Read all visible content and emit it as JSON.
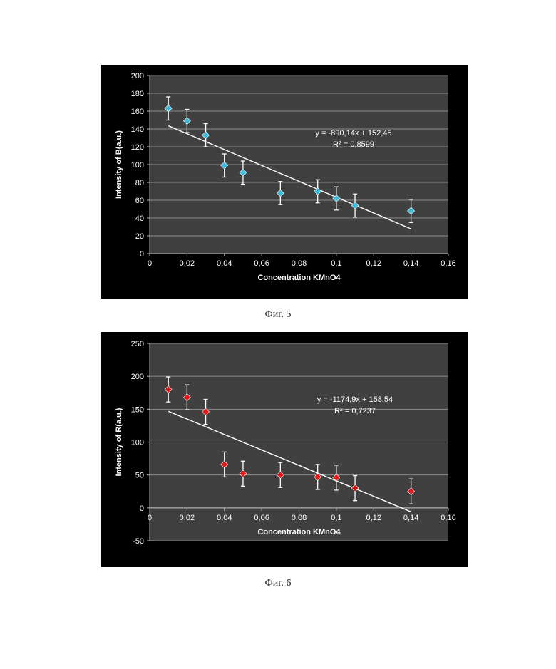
{
  "chart_data": [
    {
      "type": "scatter",
      "ylabel": "Intensity of B(a.u.)",
      "xlabel": "Concentration KMnO4",
      "x_ticks": [
        "0",
        "0,02",
        "0,04",
        "0,06",
        "0,08",
        "0,1",
        "0,12",
        "0,14",
        "0,16"
      ],
      "y_ticks": [
        "0",
        "20",
        "40",
        "60",
        "80",
        "100",
        "120",
        "140",
        "160",
        "180",
        "200"
      ],
      "xlim": [
        0,
        0.16
      ],
      "ylim": [
        0,
        200
      ],
      "grid": true,
      "marker_color": "#3cb9d8",
      "series": [
        {
          "x": [
            0.01,
            0.02,
            0.03,
            0.04,
            0.05,
            0.07,
            0.09,
            0.1,
            0.11,
            0.14
          ],
          "y": [
            163,
            149,
            133,
            99,
            91,
            68,
            70,
            62,
            54,
            48
          ],
          "err": [
            13,
            13,
            13,
            13,
            13,
            13,
            13,
            13,
            13,
            13
          ]
        }
      ],
      "trendline": {
        "slope": -890.14,
        "intercept": 152.45,
        "x_range": [
          0.01,
          0.14
        ],
        "equation": "y = -890,14x + 152,45",
        "r2_prefix": "R",
        "r2_sup": "2",
        "r2_value": " = 0,8599"
      }
    },
    {
      "type": "scatter",
      "ylabel": "Intensity of R(a.u.)",
      "xlabel": "Concentration KMnO4",
      "x_ticks": [
        "0",
        "0,02",
        "0,04",
        "0,06",
        "0,08",
        "0,1",
        "0,12",
        "0,14",
        "0,16"
      ],
      "y_ticks": [
        "-50",
        "0",
        "50",
        "100",
        "150",
        "200",
        "250"
      ],
      "xlim": [
        0,
        0.16
      ],
      "ylim": [
        -50,
        250
      ],
      "grid": true,
      "marker_color": "#e01818",
      "series": [
        {
          "x": [
            0.01,
            0.02,
            0.03,
            0.04,
            0.05,
            0.07,
            0.09,
            0.1,
            0.11,
            0.14
          ],
          "y": [
            180,
            168,
            146,
            66,
            52,
            50,
            47,
            46,
            30,
            25
          ],
          "err": [
            19,
            19,
            19,
            19,
            19,
            19,
            19,
            19,
            19,
            19
          ]
        }
      ],
      "trendline": {
        "slope": -1174.9,
        "intercept": 158.54,
        "x_range": [
          0.01,
          0.14
        ],
        "equation": "y = -1174,9x + 158,54",
        "r2_prefix": "R",
        "r2_sup": "2",
        "r2_value": " = 0,7237"
      }
    }
  ],
  "captions": [
    "Фиг. 5",
    "Фиг. 6"
  ]
}
